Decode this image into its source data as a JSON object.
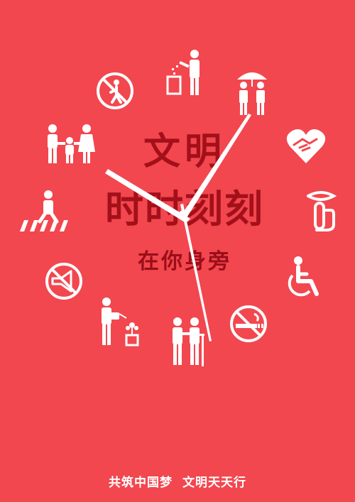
{
  "headline": {
    "line1": "文明",
    "line2": "时时刻刻",
    "line3": "在你身旁"
  },
  "footer": {
    "part1": "共筑中国梦",
    "part2": "文明天天行"
  },
  "colors": {
    "background": "#f2474f",
    "headline": "#a3101a",
    "icons": "#ffffff",
    "hands": "#ffffff"
  },
  "icons": [
    "trash-disposal-icon",
    "umbrella-sharing-icon",
    "handshake-heart-icon",
    "quiet-please-icon",
    "wheelchair-icon",
    "no-smoking-icon",
    "elderly-assist-icon",
    "watering-plants-icon",
    "no-honking-icon",
    "crosswalk-icon",
    "family-icon",
    "no-littering-icon"
  ]
}
